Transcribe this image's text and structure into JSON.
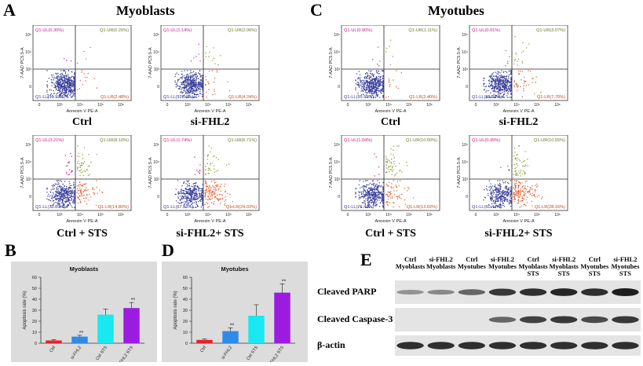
{
  "panels": {
    "A": "A",
    "B": "B",
    "C": "C",
    "D": "D",
    "E": "E"
  },
  "section_titles": {
    "myoblasts": "Myoblasts",
    "myotubes": "Myotubes"
  },
  "axis_text": {
    "x": "Annexin V PE-A",
    "y": "7-AAD PC5.5-A"
  },
  "flow_plots": [
    {
      "id": "A1",
      "label": "Ctrl",
      "ul": "Q1-UL(0.30%)",
      "ur": "Q1-UR(0.26%)",
      "ll": "Q1-LL(96.97%)",
      "lr": "Q1-LR(2.48%)"
    },
    {
      "id": "A2",
      "label": "si-FHL2",
      "ul": "Q1-UL(1.14%)",
      "ur": "Q1-UR(2.06%)",
      "ll": "Q1-LL(92.56%)",
      "lr": "Q1-LR(4.24%)"
    },
    {
      "id": "A3",
      "label": "Ctrl + STS",
      "ul": "Q1-UL(3.21%)",
      "ur": "Q1-UR(8.10%)",
      "ll": "Q1-LL(73.89%)",
      "lr": "Q1-LR(14.80%)"
    },
    {
      "id": "A4",
      "label": "si-FHL2+ STS",
      "ul": "Q1-UL(1.74%)",
      "ur": "Q1-UR(6.71%)",
      "ll": "Q1-LL(67.53%)",
      "lr": "Q1-LR(24.02%)"
    },
    {
      "id": "C1",
      "label": "Ctrl",
      "ul": "Q1-UL(0.90%)",
      "ur": "Q1-UR(1.11%)",
      "ll": "Q1-LL(95.59%)",
      "lr": "Q1-LR(2.40%)"
    },
    {
      "id": "C2",
      "label": "si-FHL2",
      "ul": "Q1-UL(0.91%)",
      "ur": "Q1-UR(3.07%)",
      "ll": "Q1-LL(88.33%)",
      "lr": "Q1-LR(7.70%)"
    },
    {
      "id": "C3",
      "label": "Ctrl + STS",
      "ul": "Q1-UL(1.04%)",
      "ur": "Q1-UR(10.50%)",
      "ll": "Q1-LL(76.43%)",
      "lr": "Q1-LR(12.02%)"
    },
    {
      "id": "C4",
      "label": "si-FHL2+ STS",
      "ul": "Q1-UL(0.95%)",
      "ur": "Q1-UR(10.55%)",
      "ll": "Q1-LL(60.44%)",
      "lr": "Q1-LR(28.16%)"
    }
  ],
  "chart_data": [
    {
      "type": "bar",
      "title": "Myoblasts",
      "ylabel": "Apoptosis rate (%)",
      "ylim": [
        0,
        60
      ],
      "yticks": [
        "0",
        "10",
        "20",
        "30",
        "40",
        "50",
        "60"
      ],
      "categories": [
        "Ctrl",
        "si-FHL2",
        "Ctrl STS",
        "si-FHL2 STS"
      ],
      "values": [
        2.5,
        6,
        26,
        32
      ],
      "errors": [
        0.8,
        1.2,
        5,
        5
      ],
      "stars": [
        "",
        "**",
        "",
        "**"
      ],
      "colors": [
        "#e8202a",
        "#2f8be8",
        "#19e8f0",
        "#9b1ce0"
      ]
    },
    {
      "type": "bar",
      "title": "Myotubes",
      "ylabel": "Apoptosis rate (%)",
      "ylim": [
        0,
        60
      ],
      "yticks": [
        "0",
        "10",
        "20",
        "30",
        "40",
        "50",
        "60"
      ],
      "categories": [
        "Ctrl",
        "si-FHL2",
        "Ctrl STS",
        "si-FHL2 STS"
      ],
      "values": [
        3,
        11,
        25,
        46
      ],
      "errors": [
        0.8,
        3,
        10,
        8
      ],
      "stars": [
        "",
        "**",
        "",
        "**"
      ],
      "colors": [
        "#e8202a",
        "#2f8be8",
        "#19e8f0",
        "#9b1ce0"
      ]
    }
  ],
  "western": {
    "lanes": [
      {
        "l1": "Ctrl",
        "l2": "Myoblasts",
        "l3": ""
      },
      {
        "l1": "si-FHL2",
        "l2": "Myoblasts",
        "l3": ""
      },
      {
        "l1": "Ctrl",
        "l2": "Myotubes",
        "l3": ""
      },
      {
        "l1": "si-FHL2",
        "l2": "Myotubes",
        "l3": ""
      },
      {
        "l1": "Ctrl",
        "l2": "Myoblasts",
        "l3": "STS"
      },
      {
        "l1": "si-FHL2",
        "l2": "Myoblasts",
        "l3": "STS"
      },
      {
        "l1": "Ctrl",
        "l2": "Myotubes",
        "l3": "STS"
      },
      {
        "l1": "si-FHL2",
        "l2": "Myotubes",
        "l3": "STS"
      }
    ],
    "rows": [
      {
        "label": "Cleaved PARP",
        "intensity": [
          0.3,
          0.35,
          0.55,
          0.8,
          0.85,
          0.9,
          0.85,
          0.95
        ]
      },
      {
        "label": "Cleaved Caspase-3",
        "intensity": [
          0,
          0,
          0,
          0.55,
          0.75,
          0.8,
          0.7,
          0.8
        ]
      },
      {
        "label": "β-actin",
        "intensity": [
          0.85,
          0.85,
          0.85,
          0.85,
          0.85,
          0.85,
          0.85,
          0.85
        ]
      }
    ]
  }
}
